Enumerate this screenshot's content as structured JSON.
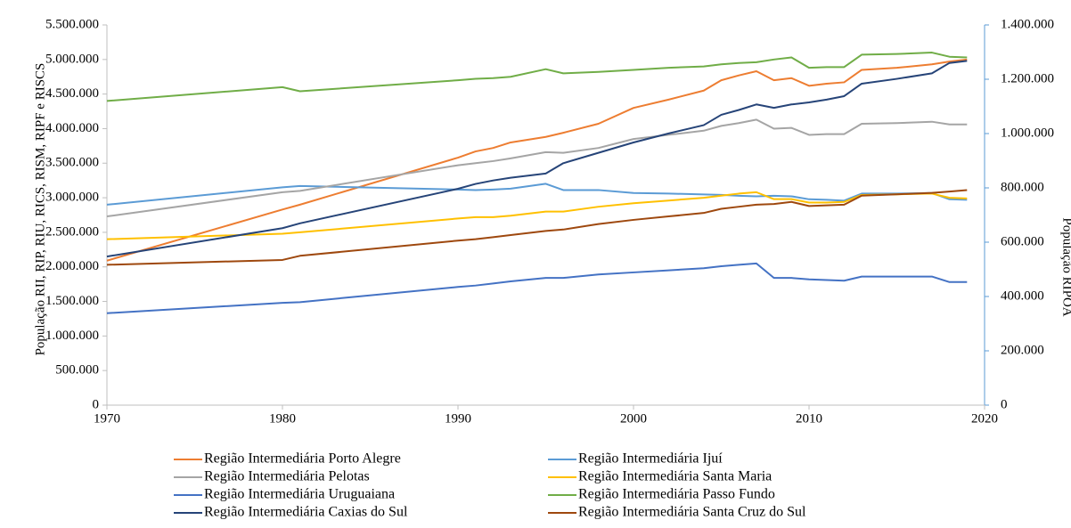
{
  "chart_data": {
    "type": "line",
    "y_label": "População RII, RIP, RIU, RICS, RISM, RIPF e RISCS",
    "y2_label": "População RIPOA",
    "x": [
      1970,
      1980,
      1981,
      1990,
      1991,
      1992,
      1993,
      1995,
      1996,
      1998,
      2000,
      2002,
      2004,
      2005,
      2006,
      2007,
      2008,
      2009,
      2010,
      2011,
      2012,
      2013,
      2015,
      2017,
      2018,
      2019
    ],
    "xlim": [
      1970,
      2020
    ],
    "xticks": [
      1970,
      1980,
      1990,
      2000,
      2010,
      2020
    ],
    "ylim": [
      0,
      5500000
    ],
    "yticks": [
      {
        "value": 0,
        "label": "0"
      },
      {
        "value": 500000,
        "label": "500.000"
      },
      {
        "value": 1000000,
        "label": "1.000.000"
      },
      {
        "value": 1500000,
        "label": "1.500.000"
      },
      {
        "value": 2000000,
        "label": "2.000.000"
      },
      {
        "value": 2500000,
        "label": "2.500.000"
      },
      {
        "value": 3000000,
        "label": "3.000.000"
      },
      {
        "value": 3500000,
        "label": "3.500.000"
      },
      {
        "value": 4000000,
        "label": "4.000.000"
      },
      {
        "value": 4500000,
        "label": "4.500.000"
      },
      {
        "value": 5000000,
        "label": "5.000.000"
      },
      {
        "value": 5500000,
        "label": "5.500.000"
      }
    ],
    "y2lim": [
      0,
      1400000
    ],
    "y2ticks": [
      {
        "value": 0,
        "label": "0"
      },
      {
        "value": 200000,
        "label": "200.000"
      },
      {
        "value": 400000,
        "label": "400.000"
      },
      {
        "value": 600000,
        "label": "600.000"
      },
      {
        "value": 800000,
        "label": "800.000"
      },
      {
        "value": 1000000,
        "label": "1.000.000"
      },
      {
        "value": 1200000,
        "label": "1.200.000"
      },
      {
        "value": 1400000,
        "label": "1.400.000"
      }
    ],
    "series": [
      {
        "name": "Região Intermediária Porto Alegre",
        "color": "#ed7d31",
        "values": [
          2090000,
          2830000,
          2900000,
          3580000,
          3670000,
          3720000,
          3800000,
          3880000,
          3940000,
          4070000,
          4300000,
          4420000,
          4550000,
          4700000,
          4770000,
          4830000,
          4700000,
          4730000,
          4620000,
          4650000,
          4670000,
          4850000,
          4880000,
          4930000,
          4970000,
          5000000
        ]
      },
      {
        "name": "Região Intermediária Ijuí",
        "color": "#5b9bd5",
        "axis": "y2",
        "values": [
          738000,
          802000,
          807000,
          794000,
          792000,
          794000,
          797000,
          815000,
          792000,
          792000,
          781000,
          779000,
          776000,
          774000,
          771000,
          769000,
          771000,
          769000,
          758000,
          756000,
          753000,
          779000,
          779000,
          781000,
          758000,
          756000
        ]
      },
      {
        "name": "Região Intermediária Pelotas",
        "color": "#a5a5a5",
        "values": [
          2730000,
          3080000,
          3100000,
          3470000,
          3500000,
          3530000,
          3570000,
          3660000,
          3650000,
          3720000,
          3850000,
          3910000,
          3970000,
          4040000,
          4080000,
          4130000,
          4000000,
          4010000,
          3910000,
          3920000,
          3920000,
          4070000,
          4080000,
          4100000,
          4060000,
          4060000
        ]
      },
      {
        "name": "Região Intermediária Santa Maria",
        "color": "#ffc000",
        "values": [
          2400000,
          2480000,
          2500000,
          2700000,
          2720000,
          2720000,
          2740000,
          2800000,
          2800000,
          2870000,
          2920000,
          2960000,
          3000000,
          3030000,
          3060000,
          3080000,
          2980000,
          2980000,
          2930000,
          2930000,
          2940000,
          3040000,
          3050000,
          3060000,
          3000000,
          2990000
        ]
      },
      {
        "name": "Região Intermediária Uruguaiana",
        "color": "#4472c4",
        "values": [
          1330000,
          1480000,
          1490000,
          1710000,
          1730000,
          1760000,
          1790000,
          1840000,
          1840000,
          1890000,
          1920000,
          1950000,
          1980000,
          2010000,
          2030000,
          2050000,
          1840000,
          1840000,
          1820000,
          1810000,
          1800000,
          1860000,
          1860000,
          1860000,
          1780000,
          1780000
        ]
      },
      {
        "name": "Região Intermediária Passo Fundo",
        "color": "#70ad47",
        "values": [
          4400000,
          4600000,
          4540000,
          4700000,
          4720000,
          4730000,
          4750000,
          4860000,
          4800000,
          4820000,
          4850000,
          4880000,
          4900000,
          4930000,
          4950000,
          4960000,
          5000000,
          5030000,
          4880000,
          4890000,
          4890000,
          5070000,
          5080000,
          5100000,
          5040000,
          5030000
        ]
      },
      {
        "name": "Região Intermediária Caxias do Sul",
        "color": "#264478",
        "values": [
          2150000,
          2560000,
          2630000,
          3130000,
          3200000,
          3250000,
          3290000,
          3350000,
          3500000,
          3650000,
          3800000,
          3930000,
          4050000,
          4200000,
          4270000,
          4350000,
          4300000,
          4350000,
          4380000,
          4420000,
          4470000,
          4650000,
          4720000,
          4800000,
          4950000,
          4980000
        ]
      },
      {
        "name": "Região Intermediária Santa Cruz do Sul",
        "color": "#9e480e",
        "values": [
          2030000,
          2100000,
          2160000,
          2380000,
          2400000,
          2430000,
          2460000,
          2520000,
          2540000,
          2620000,
          2680000,
          2730000,
          2780000,
          2840000,
          2870000,
          2900000,
          2910000,
          2940000,
          2880000,
          2890000,
          2900000,
          3030000,
          3050000,
          3070000,
          3090000,
          3110000
        ]
      }
    ]
  }
}
